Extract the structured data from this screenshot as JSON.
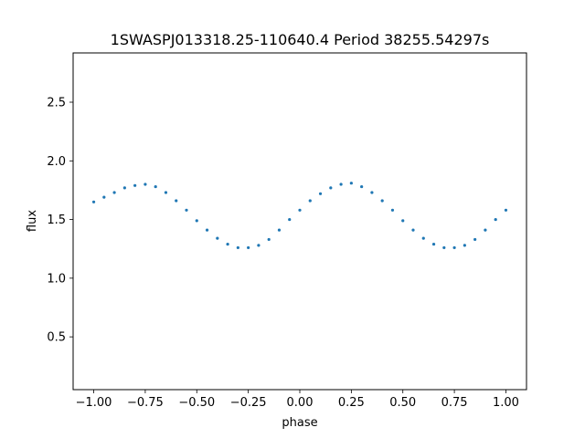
{
  "chart_data": {
    "type": "scatter",
    "title": "1SWASPJ013318.25-110640.4 Period 38255.54297s",
    "xlabel": "phase",
    "ylabel": "flux",
    "xlim": [
      -1.1,
      1.1
    ],
    "ylim": [
      0.05,
      2.92
    ],
    "x_ticks": [
      -1.0,
      -0.75,
      -0.5,
      -0.25,
      0.0,
      0.25,
      0.5,
      0.75,
      1.0
    ],
    "x_tick_labels": [
      "−1.00",
      "−0.75",
      "−0.50",
      "−0.25",
      "0.00",
      "0.25",
      "0.50",
      "0.75",
      "1.00"
    ],
    "y_ticks": [
      0.5,
      1.0,
      1.5,
      2.0,
      2.5
    ],
    "y_tick_labels": [
      "0.5",
      "1.0",
      "1.5",
      "2.0",
      "2.5"
    ],
    "grid": false,
    "marker_color": "#1f77b4",
    "series": [
      {
        "x": [
          -1.0,
          -0.95,
          -0.9,
          -0.85,
          -0.8,
          -0.75,
          -0.7,
          -0.65,
          -0.6,
          -0.55,
          -0.5,
          -0.45,
          -0.4,
          -0.35,
          -0.3,
          -0.25,
          -0.2,
          -0.15,
          -0.1,
          -0.05,
          0.0,
          0.05,
          0.1,
          0.15,
          0.2,
          0.25,
          0.3,
          0.35,
          0.4,
          0.45,
          0.5,
          0.55,
          0.6,
          0.65,
          0.7,
          0.75,
          0.8,
          0.85,
          0.9,
          0.95,
          1.0
        ],
        "y": [
          1.65,
          1.69,
          1.73,
          1.77,
          1.79,
          1.8,
          1.78,
          1.73,
          1.66,
          1.58,
          1.49,
          1.41,
          1.34,
          1.29,
          1.26,
          1.26,
          1.28,
          1.33,
          1.41,
          1.5,
          1.58,
          1.66,
          1.72,
          1.77,
          1.8,
          1.81,
          1.78,
          1.73,
          1.66,
          1.58,
          1.49,
          1.41,
          1.34,
          1.29,
          1.26,
          1.26,
          1.28,
          1.33,
          1.41,
          1.5,
          1.58
        ]
      }
    ]
  }
}
